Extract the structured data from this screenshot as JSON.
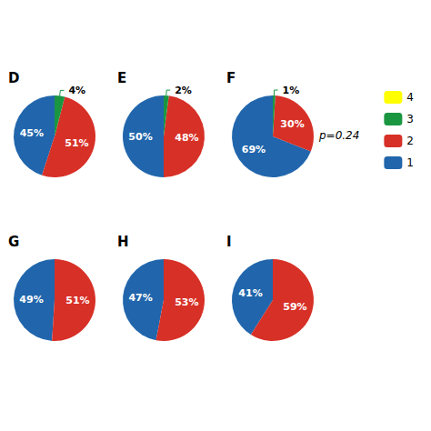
{
  "chart_data": [
    {
      "type": "pie",
      "title": "D",
      "categories": [
        "1",
        "2",
        "3",
        "4"
      ],
      "values": [
        45,
        51,
        4,
        0
      ],
      "colors": [
        "#2166ac",
        "#d73027",
        "#1a9641",
        "#ffff00"
      ],
      "value_labels": [
        "45%",
        "51%",
        "4%",
        null
      ],
      "data_labels": true
    },
    {
      "type": "pie",
      "title": "E",
      "categories": [
        "1",
        "2",
        "3",
        "4"
      ],
      "values": [
        50,
        48,
        2,
        0
      ],
      "colors": [
        "#2166ac",
        "#d73027",
        "#1a9641",
        "#ffff00"
      ],
      "value_labels": [
        "50%",
        "48%",
        "2%",
        null
      ],
      "data_labels": true
    },
    {
      "type": "pie",
      "title": "F",
      "categories": [
        "1",
        "2",
        "3",
        "4"
      ],
      "values": [
        69,
        30,
        1,
        0
      ],
      "colors": [
        "#2166ac",
        "#d73027",
        "#1a9641",
        "#ffff00"
      ],
      "value_labels": [
        "69%",
        "30%",
        "1%",
        null
      ],
      "data_labels": true,
      "annotation": "p=0.24",
      "legend": "right"
    },
    {
      "type": "pie",
      "title": "G",
      "categories": [
        "1",
        "2",
        "3",
        "4"
      ],
      "values": [
        49,
        51,
        0,
        0
      ],
      "colors": [
        "#2166ac",
        "#d73027",
        "#1a9641",
        "#ffff00"
      ],
      "value_labels": [
        "49%",
        "51%",
        null,
        null
      ],
      "data_labels": true
    },
    {
      "type": "pie",
      "title": "H",
      "categories": [
        "1",
        "2",
        "3",
        "4"
      ],
      "values": [
        47,
        53,
        0,
        0
      ],
      "colors": [
        "#2166ac",
        "#d73027",
        "#1a9641",
        "#ffff00"
      ],
      "value_labels": [
        "47%",
        "53%",
        null,
        null
      ],
      "data_labels": true
    },
    {
      "type": "pie",
      "title": "I",
      "categories": [
        "1",
        "2",
        "3",
        "4"
      ],
      "values": [
        41,
        59,
        0,
        0
      ],
      "colors": [
        "#2166ac",
        "#d73027",
        "#1a9641",
        "#ffff00"
      ],
      "value_labels": [
        "41%",
        "59%",
        null,
        null
      ],
      "data_labels": true
    }
  ]
}
